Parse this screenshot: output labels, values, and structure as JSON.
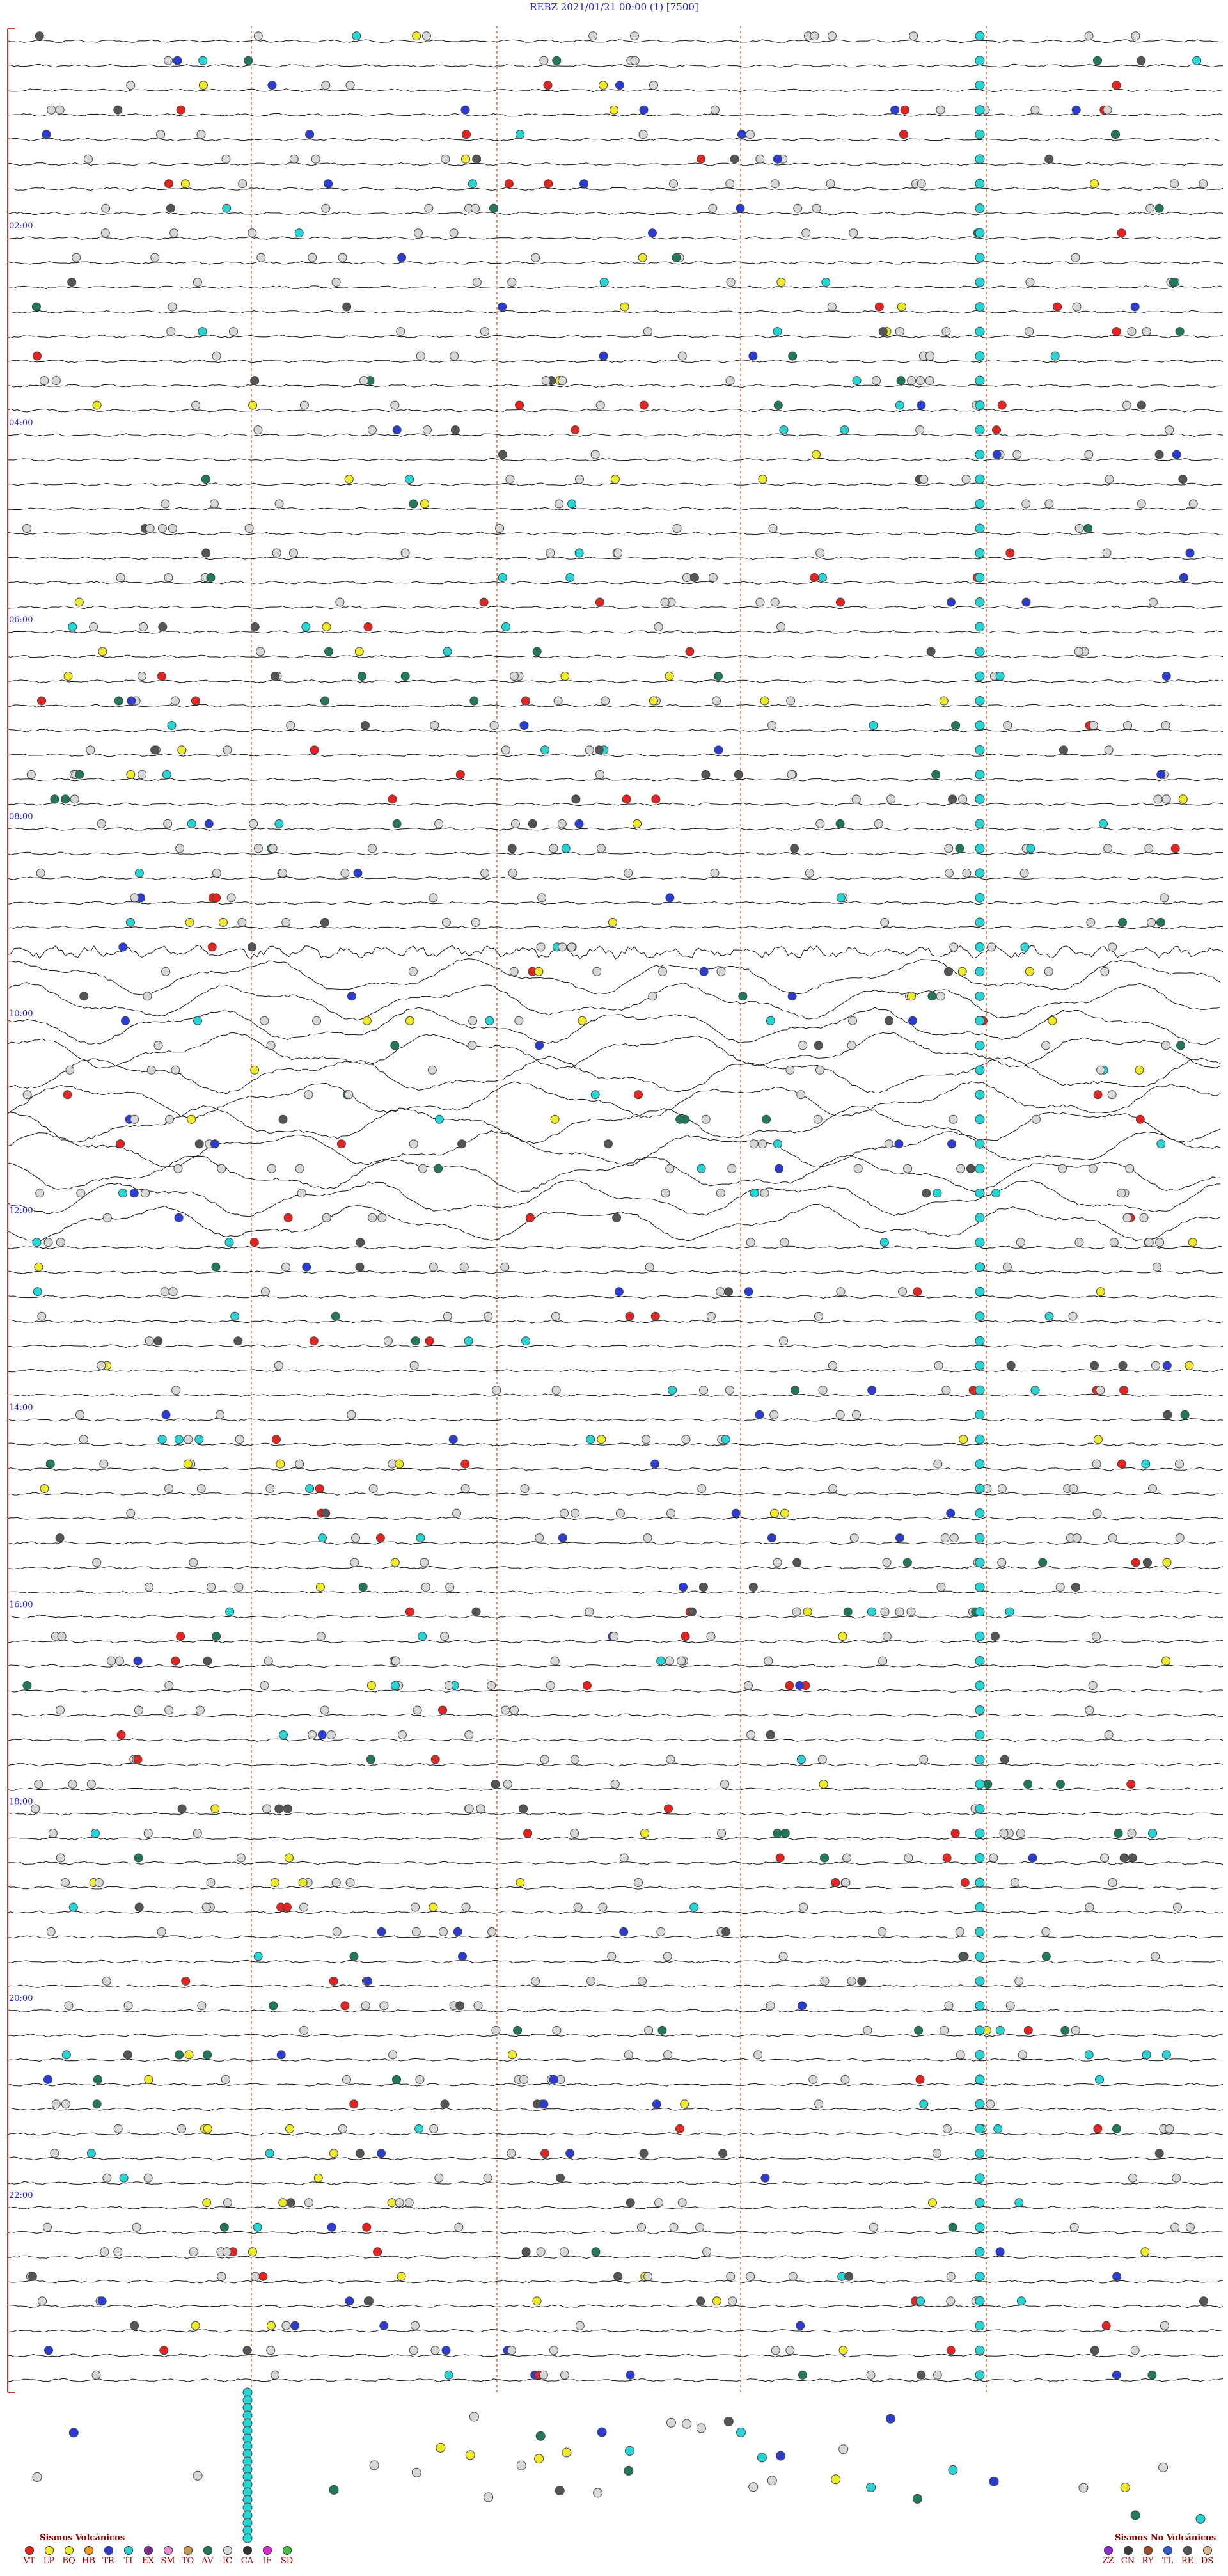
{
  "chart_data": {
    "type": "helicorder",
    "title": "REBZ 2021/01/21 00:00 (1) [7500]",
    "hour_labels": [
      "02:00",
      "04:00",
      "06:00",
      "08:00",
      "10:00",
      "12:00",
      "14:00",
      "16:00",
      "18:00",
      "20:00",
      "22:00"
    ],
    "legend_volcanic": {
      "title": "Sismos Volcánicos",
      "items": [
        {
          "code": "VT",
          "color": "#e8231f"
        },
        {
          "code": "LP",
          "color": "#f0ea28"
        },
        {
          "code": "BQ",
          "color": "#f0ea28"
        },
        {
          "code": "HB",
          "color": "#f59a1a"
        },
        {
          "code": "TR",
          "color": "#2b3bd6"
        },
        {
          "code": "TI",
          "color": "#25d6d6"
        },
        {
          "code": "EX",
          "color": "#7a2b8c"
        },
        {
          "code": "SM",
          "color": "#e88ad6"
        },
        {
          "code": "TO",
          "color": "#c79a4a"
        },
        {
          "code": "AV",
          "color": "#1f7a5c"
        },
        {
          "code": "IC",
          "color": "#d8d8d8"
        },
        {
          "code": "CA",
          "color": "#333333"
        },
        {
          "code": "IF",
          "color": "#e025d6"
        },
        {
          "code": "SD",
          "color": "#3fc23f"
        }
      ]
    },
    "legend_non_volcanic": {
      "title": "Sismos No Volcánicos",
      "items": [
        {
          "code": "ZZ",
          "color": "#8c2bd6"
        },
        {
          "code": "CN",
          "color": "#3a3a3a"
        },
        {
          "code": "RY",
          "color": "#a04b2b"
        },
        {
          "code": "TL",
          "color": "#2b5bd6"
        },
        {
          "code": "RE",
          "color": "#555555"
        },
        {
          "code": "DS",
          "color": "#d4b98c"
        }
      ]
    }
  }
}
